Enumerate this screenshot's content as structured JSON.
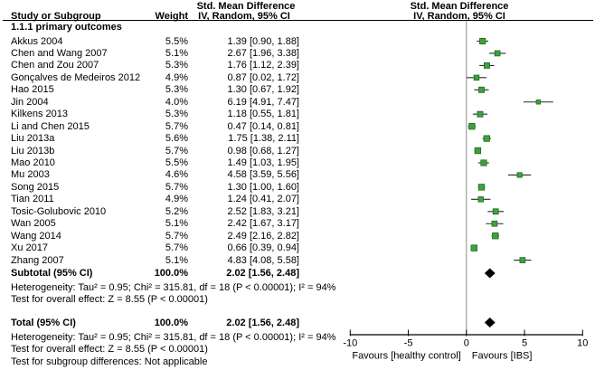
{
  "header": {
    "study_col": "Study or Subgroup",
    "weight_col": "Weight",
    "effect_line1": "Std. Mean Difference",
    "effect_line2": "IV, Random, 95% CI",
    "plot_line1": "Std. Mean Difference",
    "plot_line2": "IV, Random, 95% CI"
  },
  "chart_data": {
    "type": "scatter",
    "variant": "forest_plot",
    "subgroup": "1.1.1 primary outcomes",
    "studies": [
      {
        "name": "Akkus 2004",
        "weight": "5.5%",
        "w": 5.5,
        "ci_text": "1.39 [0.90, 1.88]",
        "est": 1.39,
        "lo": 0.9,
        "hi": 1.88
      },
      {
        "name": "Chen and Wang 2007",
        "weight": "5.1%",
        "w": 5.1,
        "ci_text": "2.67 [1.96, 3.38]",
        "est": 2.67,
        "lo": 1.96,
        "hi": 3.38
      },
      {
        "name": "Chen and Zou 2007",
        "weight": "5.3%",
        "w": 5.3,
        "ci_text": "1.76 [1.12, 2.39]",
        "est": 1.76,
        "lo": 1.12,
        "hi": 2.39
      },
      {
        "name": "Gonçalves de Medeiros 2012",
        "weight": "4.9%",
        "w": 4.9,
        "ci_text": "0.87 [0.02, 1.72]",
        "est": 0.87,
        "lo": 0.02,
        "hi": 1.72
      },
      {
        "name": "Hao 2015",
        "weight": "5.3%",
        "w": 5.3,
        "ci_text": "1.30 [0.67, 1.92]",
        "est": 1.3,
        "lo": 0.67,
        "hi": 1.92
      },
      {
        "name": "Jin 2004",
        "weight": "4.0%",
        "w": 4.0,
        "ci_text": "6.19 [4.91, 7.47]",
        "est": 6.19,
        "lo": 4.91,
        "hi": 7.47
      },
      {
        "name": "Kilkens 2013",
        "weight": "5.3%",
        "w": 5.3,
        "ci_text": "1.18 [0.55, 1.81]",
        "est": 1.18,
        "lo": 0.55,
        "hi": 1.81
      },
      {
        "name": "Li and Chen 2015",
        "weight": "5.7%",
        "w": 5.7,
        "ci_text": "0.47 [0.14, 0.81]",
        "est": 0.47,
        "lo": 0.14,
        "hi": 0.81
      },
      {
        "name": "Liu 2013a",
        "weight": "5.6%",
        "w": 5.6,
        "ci_text": "1.75 [1.38, 2.11]",
        "est": 1.75,
        "lo": 1.38,
        "hi": 2.11
      },
      {
        "name": "Liu 2013b",
        "weight": "5.7%",
        "w": 5.7,
        "ci_text": "0.98 [0.68, 1.27]",
        "est": 0.98,
        "lo": 0.68,
        "hi": 1.27
      },
      {
        "name": "Mao 2010",
        "weight": "5.5%",
        "w": 5.5,
        "ci_text": "1.49 [1.03, 1.95]",
        "est": 1.49,
        "lo": 1.03,
        "hi": 1.95
      },
      {
        "name": "Mu 2003",
        "weight": "4.6%",
        "w": 4.6,
        "ci_text": "4.58 [3.59, 5.56]",
        "est": 4.58,
        "lo": 3.59,
        "hi": 5.56
      },
      {
        "name": "Song 2015",
        "weight": "5.7%",
        "w": 5.7,
        "ci_text": "1.30 [1.00, 1.60]",
        "est": 1.3,
        "lo": 1.0,
        "hi": 1.6
      },
      {
        "name": "Tian 2011",
        "weight": "4.9%",
        "w": 4.9,
        "ci_text": "1.24 [0.41, 2.07]",
        "est": 1.24,
        "lo": 0.41,
        "hi": 2.07
      },
      {
        "name": "Tosic-Golubovic 2010",
        "weight": "5.2%",
        "w": 5.2,
        "ci_text": "2.52 [1.83, 3.21]",
        "est": 2.52,
        "lo": 1.83,
        "hi": 3.21
      },
      {
        "name": "Wan 2005",
        "weight": "5.1%",
        "w": 5.1,
        "ci_text": "2.42 [1.67, 3.17]",
        "est": 2.42,
        "lo": 1.67,
        "hi": 3.17
      },
      {
        "name": "Wang 2014",
        "weight": "5.7%",
        "w": 5.7,
        "ci_text": "2.49 [2.16, 2.82]",
        "est": 2.49,
        "lo": 2.16,
        "hi": 2.82
      },
      {
        "name": "Xu 2017",
        "weight": "5.7%",
        "w": 5.7,
        "ci_text": "0.66 [0.39, 0.94]",
        "est": 0.66,
        "lo": 0.39,
        "hi": 0.94
      },
      {
        "name": "Zhang 2007",
        "weight": "5.1%",
        "w": 5.1,
        "ci_text": "4.83 [4.08, 5.58]",
        "est": 4.83,
        "lo": 4.08,
        "hi": 5.58
      }
    ],
    "subtotal": {
      "label": "Subtotal (95% CI)",
      "weight": "100.0%",
      "ci_text": "2.02 [1.56, 2.48]",
      "est": 2.02,
      "lo": 1.56,
      "hi": 2.48
    },
    "subtotal_heterogeneity": "Heterogeneity: Tau² = 0.95; Chi² = 315.81, df = 18 (P < 0.00001); I² = 94%",
    "subtotal_test": "Test for overall effect: Z = 8.55 (P < 0.00001)",
    "total": {
      "label": "Total (95% CI)",
      "weight": "100.0%",
      "ci_text": "2.02 [1.56, 2.48]",
      "est": 2.02,
      "lo": 1.56,
      "hi": 2.48
    },
    "total_heterogeneity": "Heterogeneity: Tau² = 0.95; Chi² = 315.81, df = 18 (P < 0.00001); I² = 94%",
    "total_test": "Test for overall effect: Z = 8.55 (P < 0.00001)",
    "subgroup_diff_test": "Test for subgroup differences: Not applicable",
    "axis": {
      "min": -10,
      "max": 10,
      "ticks": [
        -10,
        -5,
        0,
        5,
        10
      ],
      "left_label": "Favours [healthy control]",
      "right_label": "Favours [IBS]"
    },
    "colors": {
      "marker_fill": "#40A040",
      "marker_border": "#1C6B1C",
      "ci_line": "#2B2B2B",
      "diamond": "#000000",
      "zero_line": "#8C8C8C",
      "axis": "#000000"
    }
  }
}
